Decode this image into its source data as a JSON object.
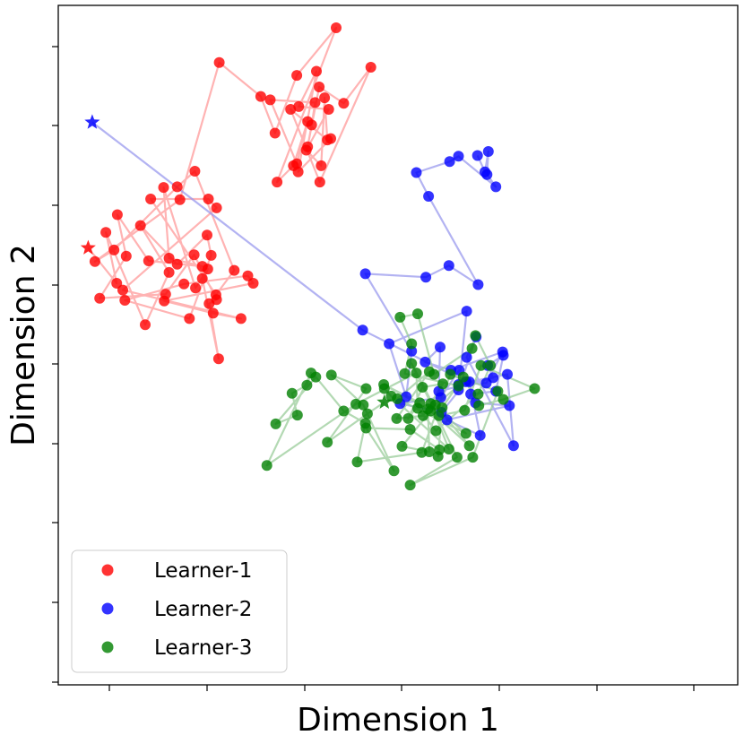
{
  "chart_data": {
    "type": "scatter",
    "xlabel": "Dimension 1",
    "ylabel": "Dimension 2",
    "xlim": [
      0.0,
      1.0
    ],
    "ylim": [
      0.0,
      1.0
    ],
    "grid": false,
    "tick_labels_shown": false,
    "legend_location": "lower-left",
    "series": [
      {
        "name": "Learner-1",
        "color": "#ff0000",
        "line_color": "#ff9999",
        "end_marker": "star",
        "points": [
          [
            0.044,
            0.643
          ],
          [
            0.086,
            0.591
          ],
          [
            0.07,
            0.666
          ],
          [
            0.128,
            0.53
          ],
          [
            0.163,
            0.607
          ],
          [
            0.121,
            0.676
          ],
          [
            0.175,
            0.619
          ],
          [
            0.219,
            0.662
          ],
          [
            0.225,
            0.632
          ],
          [
            0.212,
            0.598
          ],
          [
            0.236,
            0.48
          ],
          [
            0.222,
            0.561
          ],
          [
            0.233,
            0.567
          ],
          [
            0.2,
            0.633
          ],
          [
            0.158,
            0.575
          ],
          [
            0.061,
            0.569
          ],
          [
            0.1,
            0.631
          ],
          [
            0.087,
            0.692
          ],
          [
            0.133,
            0.624
          ],
          [
            0.212,
            0.616
          ],
          [
            0.163,
            0.628
          ],
          [
            0.155,
            0.732
          ],
          [
            0.202,
            0.584
          ],
          [
            0.22,
            0.612
          ],
          [
            0.193,
            0.539
          ],
          [
            0.098,
            0.566
          ],
          [
            0.185,
            0.59
          ],
          [
            0.279,
            0.602
          ],
          [
            0.287,
            0.591
          ],
          [
            0.156,
            0.565
          ],
          [
            0.228,
            0.547
          ],
          [
            0.269,
            0.539
          ],
          [
            0.095,
            0.581
          ],
          [
            0.233,
            0.702
          ],
          [
            0.221,
            0.715
          ],
          [
            0.136,
            0.715
          ],
          [
            0.232,
            0.574
          ],
          [
            0.259,
            0.61
          ],
          [
            0.201,
            0.756
          ],
          [
            0.175,
            0.733
          ],
          [
            0.082,
            0.64
          ],
          [
            0.054,
            0.623
          ],
          [
            0.179,
            0.714
          ],
          [
            0.237,
            0.916
          ],
          [
            0.298,
            0.866
          ],
          [
            0.319,
            0.812
          ],
          [
            0.351,
            0.897
          ],
          [
            0.409,
            0.967
          ],
          [
            0.322,
            0.74
          ],
          [
            0.346,
            0.764
          ],
          [
            0.367,
            0.829
          ],
          [
            0.351,
            0.767
          ],
          [
            0.312,
            0.861
          ],
          [
            0.378,
            0.857
          ],
          [
            0.373,
            0.824
          ],
          [
            0.367,
            0.792
          ],
          [
            0.384,
            0.88
          ],
          [
            0.42,
            0.856
          ],
          [
            0.46,
            0.909
          ],
          [
            0.385,
            0.74
          ],
          [
            0.342,
            0.847
          ],
          [
            0.396,
            0.802
          ],
          [
            0.392,
            0.864
          ],
          [
            0.387,
            0.764
          ],
          [
            0.365,
            0.787
          ],
          [
            0.398,
            0.847
          ],
          [
            0.354,
            0.851
          ],
          [
            0.38,
            0.903
          ],
          [
            0.353,
            0.755
          ],
          [
            0.401,
            0.804
          ]
        ]
      },
      {
        "name": "Learner-2",
        "color": "#0000ff",
        "line_color": "#9999ee",
        "end_marker": "star",
        "points": [
          [
            0.05,
            0.828
          ],
          [
            0.448,
            0.522
          ],
          [
            0.6,
            0.446
          ],
          [
            0.564,
            0.401
          ],
          [
            0.503,
            0.414
          ],
          [
            0.563,
            0.423
          ],
          [
            0.59,
            0.463
          ],
          [
            0.589,
            0.442
          ],
          [
            0.63,
            0.444
          ],
          [
            0.654,
            0.49
          ],
          [
            0.578,
            0.463
          ],
          [
            0.54,
            0.475
          ],
          [
            0.562,
            0.497
          ],
          [
            0.56,
            0.432
          ],
          [
            0.64,
            0.452
          ],
          [
            0.632,
            0.47
          ],
          [
            0.655,
            0.485
          ],
          [
            0.644,
            0.432
          ],
          [
            0.607,
            0.428
          ],
          [
            0.614,
            0.415
          ],
          [
            0.664,
            0.411
          ],
          [
            0.572,
            0.39
          ],
          [
            0.621,
            0.367
          ],
          [
            0.605,
            0.446
          ],
          [
            0.661,
            0.457
          ],
          [
            0.67,
            0.352
          ],
          [
            0.601,
            0.482
          ],
          [
            0.615,
            0.512
          ],
          [
            0.589,
            0.434
          ],
          [
            0.601,
            0.55
          ],
          [
            0.487,
            0.502
          ],
          [
            0.512,
            0.424
          ],
          [
            0.52,
            0.491
          ],
          [
            0.452,
            0.605
          ],
          [
            0.541,
            0.6
          ],
          [
            0.575,
            0.617
          ],
          [
            0.618,
            0.589
          ],
          [
            0.545,
            0.719
          ],
          [
            0.527,
            0.754
          ],
          [
            0.576,
            0.77
          ],
          [
            0.589,
            0.778
          ],
          [
            0.644,
            0.733
          ],
          [
            0.631,
            0.751
          ],
          [
            0.633,
            0.785
          ],
          [
            0.628,
            0.755
          ],
          [
            0.617,
            0.779
          ]
        ]
      },
      {
        "name": "Learner-3",
        "color": "#008000",
        "line_color": "#99cc99",
        "end_marker": "star",
        "points": [
          [
            0.48,
            0.416
          ],
          [
            0.455,
            0.399
          ],
          [
            0.396,
            0.357
          ],
          [
            0.453,
            0.436
          ],
          [
            0.402,
            0.456
          ],
          [
            0.449,
            0.412
          ],
          [
            0.494,
            0.315
          ],
          [
            0.453,
            0.378
          ],
          [
            0.518,
            0.376
          ],
          [
            0.561,
            0.346
          ],
          [
            0.559,
            0.336
          ],
          [
            0.565,
            0.408
          ],
          [
            0.596,
            0.453
          ],
          [
            0.619,
            0.411
          ],
          [
            0.655,
            0.42
          ],
          [
            0.701,
            0.436
          ],
          [
            0.622,
            0.47
          ],
          [
            0.598,
            0.404
          ],
          [
            0.56,
            0.396
          ],
          [
            0.52,
            0.473
          ],
          [
            0.587,
            0.335
          ],
          [
            0.518,
            0.294
          ],
          [
            0.61,
            0.335
          ],
          [
            0.647,
            0.432
          ],
          [
            0.577,
            0.457
          ],
          [
            0.535,
            0.342
          ],
          [
            0.44,
            0.328
          ],
          [
            0.452,
            0.385
          ],
          [
            0.42,
            0.403
          ],
          [
            0.379,
            0.453
          ],
          [
            0.32,
            0.384
          ],
          [
            0.352,
            0.397
          ],
          [
            0.344,
            0.429
          ],
          [
            0.366,
            0.441
          ],
          [
            0.372,
            0.459
          ],
          [
            0.307,
            0.323
          ],
          [
            0.438,
            0.413
          ],
          [
            0.527,
            0.459
          ],
          [
            0.529,
            0.407
          ],
          [
            0.556,
            0.374
          ],
          [
            0.618,
            0.428
          ],
          [
            0.636,
            0.47
          ],
          [
            0.614,
            0.514
          ],
          [
            0.609,
            0.495
          ],
          [
            0.553,
            0.457
          ],
          [
            0.529,
            0.546
          ],
          [
            0.503,
            0.541
          ],
          [
            0.52,
            0.502
          ],
          [
            0.51,
            0.458
          ],
          [
            0.589,
            0.44
          ],
          [
            0.555,
            0.412
          ],
          [
            0.605,
            0.352
          ],
          [
            0.548,
            0.403
          ],
          [
            0.506,
            0.351
          ],
          [
            0.546,
            0.343
          ],
          [
            0.544,
            0.406
          ],
          [
            0.479,
            0.442
          ],
          [
            0.532,
            0.415
          ],
          [
            0.515,
            0.392
          ],
          [
            0.536,
            0.438
          ],
          [
            0.566,
            0.443
          ],
          [
            0.537,
            0.396
          ],
          [
            0.498,
            0.392
          ],
          [
            0.546,
            0.461
          ],
          [
            0.499,
            0.421
          ],
          [
            0.6,
            0.37
          ],
          [
            0.548,
            0.414
          ],
          [
            0.575,
            0.347
          ],
          [
            0.49,
            0.425
          ],
          [
            0.48,
            0.436
          ]
        ]
      }
    ]
  },
  "legend": {
    "items": [
      {
        "label": "Learner-1",
        "color": "#ff0000"
      },
      {
        "label": "Learner-2",
        "color": "#0000ff"
      },
      {
        "label": "Learner-3",
        "color": "#008000"
      }
    ]
  },
  "axes": {
    "xlabel": "Dimension 1",
    "ylabel": "Dimension 2"
  }
}
